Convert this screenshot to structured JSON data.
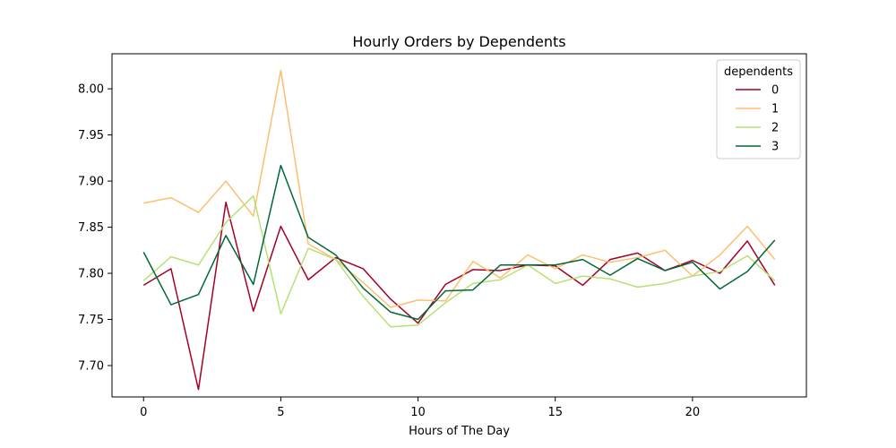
{
  "chart_data": {
    "type": "line",
    "title": "Hourly Orders by Dependents",
    "xlabel": "Hours of The Day",
    "ylabel": "",
    "xlim": [
      -1.15,
      24.15
    ],
    "ylim": [
      7.666,
      8.038
    ],
    "x_ticks": [
      0,
      5,
      10,
      15,
      20
    ],
    "y_ticks": [
      7.7,
      7.75,
      7.8,
      7.85,
      7.9,
      7.95,
      8.0
    ],
    "y_tick_labels": [
      "7.70",
      "7.75",
      "7.80",
      "7.85",
      "7.90",
      "7.95",
      "8.00"
    ],
    "grid": false,
    "legend": {
      "title": "dependents",
      "placement": "top-right"
    },
    "x": [
      0,
      1,
      2,
      3,
      4,
      5,
      6,
      7,
      8,
      9,
      10,
      11,
      12,
      13,
      14,
      15,
      16,
      17,
      18,
      19,
      20,
      21,
      22,
      23
    ],
    "series": [
      {
        "name": "0",
        "color": "#a50026",
        "values": [
          7.787,
          7.805,
          7.674,
          7.877,
          7.759,
          7.851,
          7.793,
          7.817,
          7.805,
          7.772,
          7.746,
          7.788,
          7.804,
          7.803,
          7.809,
          7.808,
          7.787,
          7.815,
          7.822,
          7.803,
          7.814,
          7.8,
          7.835,
          7.787
        ]
      },
      {
        "name": "1",
        "color": "#fdbf6f",
        "values": [
          7.876,
          7.882,
          7.866,
          7.9,
          7.862,
          8.02,
          7.832,
          7.815,
          7.79,
          7.763,
          7.771,
          7.77,
          7.813,
          7.795,
          7.82,
          7.805,
          7.82,
          7.812,
          7.817,
          7.825,
          7.797,
          7.82,
          7.851,
          7.815
        ]
      },
      {
        "name": "2",
        "color": "#b7e075",
        "values": [
          7.792,
          7.818,
          7.809,
          7.855,
          7.884,
          7.756,
          7.827,
          7.815,
          7.775,
          7.742,
          7.744,
          7.768,
          7.789,
          7.793,
          7.809,
          7.789,
          7.797,
          7.794,
          7.785,
          7.789,
          7.797,
          7.802,
          7.819,
          7.792
        ]
      },
      {
        "name": "3",
        "color": "#006837",
        "values": [
          7.823,
          7.766,
          7.777,
          7.841,
          7.788,
          7.917,
          7.839,
          7.82,
          7.784,
          7.758,
          7.75,
          7.781,
          7.782,
          7.809,
          7.809,
          7.809,
          7.815,
          7.798,
          7.816,
          7.803,
          7.812,
          7.783,
          7.802,
          7.836
        ]
      }
    ]
  }
}
